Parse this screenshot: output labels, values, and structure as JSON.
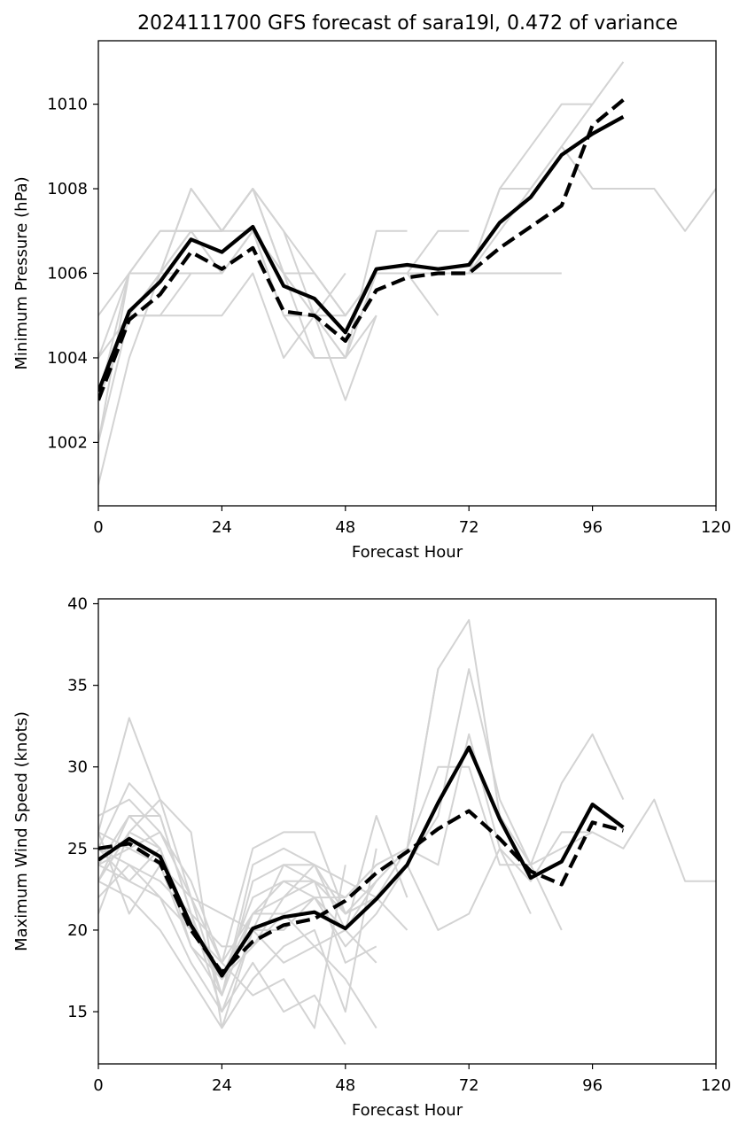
{
  "title": "2024111700 GFS forecast of sara19l, 0.472 of variance",
  "colors": {
    "member": "#d3d3d3",
    "mean": "#000000",
    "reconstruction": "#000000",
    "frame": "#000000"
  },
  "chart_data": [
    {
      "type": "line",
      "panel": "pressure",
      "xlabel": "Forecast Hour",
      "ylabel": "Minimum Pressure (hPa)",
      "xlim": [
        0,
        120
      ],
      "ylim": [
        1000.5,
        1011.5
      ],
      "xticks": [
        0,
        24,
        48,
        72,
        96,
        120
      ],
      "yticks": [
        1002,
        1004,
        1006,
        1008,
        1010
      ],
      "series": [
        {
          "role": "mean",
          "style": "solid",
          "x": [
            0,
            6,
            12,
            18,
            24,
            30,
            36,
            42,
            48,
            54,
            60,
            66,
            72,
            78,
            84,
            90,
            96,
            102
          ],
          "values": [
            1003.2,
            1005.1,
            1005.8,
            1006.8,
            1006.5,
            1007.1,
            1005.7,
            1005.4,
            1004.6,
            1006.1,
            1006.2,
            1006.1,
            1006.2,
            1007.2,
            1007.8,
            1008.8,
            1009.3,
            1009.7
          ]
        },
        {
          "role": "reconstruction",
          "style": "dashed",
          "x": [
            0,
            6,
            12,
            18,
            24,
            30,
            36,
            42,
            48,
            54,
            60,
            66,
            72,
            78,
            84,
            90,
            96,
            102
          ],
          "values": [
            1003.0,
            1004.9,
            1005.5,
            1006.5,
            1006.1,
            1006.6,
            1005.1,
            1005.0,
            1004.4,
            1005.6,
            1005.9,
            1006.0,
            1006.0,
            1006.6,
            1007.1,
            1007.6,
            1009.5,
            1010.1
          ]
        },
        {
          "role": "member",
          "x": [
            0,
            6,
            12,
            18,
            24,
            30,
            36,
            42,
            48,
            54,
            60,
            66,
            72,
            78,
            84,
            90,
            96,
            102
          ],
          "values": [
            1004,
            1006,
            1006,
            1007,
            1007,
            1008,
            1006,
            1006,
            1005,
            1006,
            1006,
            1006,
            1006,
            1008,
            1009,
            1010,
            1010,
            1011
          ]
        },
        {
          "role": "member",
          "x": [
            0,
            6,
            12,
            18,
            24,
            30,
            36,
            42,
            48,
            54,
            60,
            66,
            72,
            78,
            84,
            90,
            96,
            102,
            108,
            114,
            120
          ],
          "values": [
            1003,
            1005,
            1006,
            1007,
            1006,
            1007,
            1006,
            1005,
            1004,
            1006,
            1006,
            1006,
            1006,
            1007,
            1008,
            1009,
            1008,
            1008,
            1008,
            1007,
            1008
          ]
        },
        {
          "role": "member",
          "x": [
            0,
            6,
            12,
            18,
            24,
            30,
            36,
            42,
            48,
            54,
            60
          ],
          "values": [
            1002,
            1005,
            1005,
            1006,
            1006,
            1007,
            1005,
            1004,
            1004,
            1007,
            1007
          ]
        },
        {
          "role": "member",
          "x": [
            0,
            6,
            12,
            18,
            24,
            30,
            36,
            42,
            48,
            54,
            60,
            66
          ],
          "values": [
            1001,
            1004,
            1006,
            1008,
            1007,
            1008,
            1007,
            1005,
            1004,
            1006,
            1006,
            1005
          ]
        },
        {
          "role": "member",
          "x": [
            0,
            6,
            12,
            18,
            24,
            30,
            36,
            42,
            48,
            54,
            60,
            66,
            72
          ],
          "values": [
            1005,
            1006,
            1007,
            1007,
            1007,
            1007,
            1006,
            1006,
            1005,
            1006,
            1006,
            1007,
            1007
          ]
        },
        {
          "role": "member",
          "x": [
            0,
            6,
            12,
            18,
            24,
            30,
            36,
            42,
            48,
            54,
            60,
            66,
            72,
            78,
            84,
            90
          ],
          "values": [
            1003,
            1005,
            1006,
            1006,
            1006,
            1007,
            1005,
            1005,
            1005,
            1006,
            1006,
            1006,
            1006,
            1006,
            1006,
            1006
          ]
        },
        {
          "role": "member",
          "x": [
            0,
            6,
            12,
            18,
            24,
            30,
            36,
            42,
            48,
            54
          ],
          "values": [
            1004,
            1005,
            1005,
            1005,
            1005,
            1006,
            1004,
            1005,
            1003,
            1005
          ]
        },
        {
          "role": "member",
          "x": [
            0,
            6,
            12,
            18,
            24,
            30,
            36,
            42,
            48,
            54
          ],
          "values": [
            1003,
            1006,
            1006,
            1008,
            1007,
            1008,
            1006,
            1004,
            1004,
            1005
          ]
        },
        {
          "role": "member",
          "x": [
            0,
            6,
            12,
            18,
            24,
            30,
            36,
            42,
            48,
            54,
            60,
            66,
            72,
            78,
            84,
            90,
            96
          ],
          "values": [
            1002,
            1006,
            1007,
            1007,
            1007,
            1008,
            1007,
            1006,
            1005,
            1006,
            1006,
            1006,
            1006,
            1008,
            1008,
            1009,
            1010
          ]
        },
        {
          "role": "member",
          "x": [
            0,
            6,
            12,
            18,
            24,
            30,
            36,
            42,
            48
          ],
          "values": [
            1003,
            1005,
            1006,
            1007,
            1006,
            1007,
            1006,
            1005,
            1006
          ]
        }
      ]
    },
    {
      "type": "line",
      "panel": "wind",
      "xlabel": "Forecast Hour",
      "ylabel": "Maximum Wind Speed (knots)",
      "xlim": [
        0,
        120
      ],
      "ylim": [
        11.8,
        40.3
      ],
      "xticks": [
        0,
        24,
        48,
        72,
        96,
        120
      ],
      "yticks": [
        15,
        20,
        25,
        30,
        35,
        40
      ],
      "series": [
        {
          "role": "mean",
          "style": "solid",
          "x": [
            0,
            6,
            12,
            18,
            24,
            30,
            36,
            42,
            48,
            54,
            60,
            66,
            72,
            78,
            84,
            90,
            96,
            102
          ],
          "values": [
            24.3,
            25.6,
            24.5,
            20.3,
            17.2,
            20.1,
            20.8,
            21.1,
            20.1,
            21.9,
            24.0,
            27.8,
            31.2,
            26.8,
            23.2,
            24.2,
            27.7,
            26.3
          ]
        },
        {
          "role": "reconstruction",
          "style": "dashed",
          "x": [
            0,
            6,
            12,
            18,
            24,
            30,
            36,
            42,
            48,
            54,
            60,
            66,
            72,
            78,
            84,
            90,
            96,
            102
          ],
          "values": [
            25.0,
            25.3,
            24.1,
            20.0,
            17.4,
            19.3,
            20.3,
            20.7,
            21.8,
            23.5,
            24.8,
            26.2,
            27.3,
            25.6,
            23.6,
            22.8,
            26.6,
            26.1
          ]
        },
        {
          "role": "member",
          "x": [
            0,
            6,
            12,
            18,
            24,
            30,
            36,
            42,
            48,
            54,
            60,
            66,
            72,
            78,
            84,
            90,
            96,
            102
          ],
          "values": [
            26,
            33,
            28,
            22,
            18,
            25,
            26,
            26,
            21,
            22,
            25,
            36,
            39,
            27,
            24,
            29,
            32,
            28
          ]
        },
        {
          "role": "member",
          "x": [
            0,
            6,
            12,
            18,
            24,
            30,
            36,
            42,
            48,
            54,
            60,
            66,
            72,
            78,
            84,
            90,
            96,
            102,
            108,
            114,
            120
          ],
          "values": [
            23,
            26,
            25,
            20,
            17,
            21,
            22,
            23,
            21,
            22,
            24,
            27,
            36,
            28,
            24,
            25,
            26,
            25,
            28,
            23,
            23
          ]
        },
        {
          "role": "member",
          "x": [
            0,
            6,
            12,
            18,
            24,
            30,
            36,
            42,
            48,
            54,
            60,
            66,
            72,
            78,
            84,
            90
          ],
          "values": [
            25,
            29,
            27,
            21,
            16,
            23,
            24,
            24,
            20,
            23,
            25,
            30,
            30,
            24,
            24,
            20
          ]
        },
        {
          "role": "member",
          "x": [
            0,
            6,
            12,
            18,
            24,
            30,
            36,
            42,
            48,
            54,
            60,
            66,
            72,
            78,
            84,
            90,
            96
          ],
          "values": [
            24,
            27,
            25,
            20,
            17,
            19,
            21,
            22,
            22,
            24,
            25,
            24,
            32,
            25,
            23,
            26,
            26
          ]
        },
        {
          "role": "member",
          "x": [
            0,
            6,
            12,
            18,
            24,
            30,
            36,
            42,
            48,
            54,
            60,
            66,
            72,
            78,
            84
          ],
          "values": [
            22,
            24,
            22,
            18,
            15,
            20,
            20,
            22,
            19,
            21,
            24,
            20,
            21,
            25,
            21
          ]
        },
        {
          "role": "member",
          "x": [
            0,
            6,
            12,
            18,
            24,
            30,
            36,
            42,
            48,
            54,
            60,
            66
          ],
          "values": [
            27,
            28,
            26,
            23,
            18,
            21,
            23,
            23,
            22,
            24,
            25,
            36
          ]
        },
        {
          "role": "member",
          "x": [
            0,
            6,
            12,
            18,
            24,
            30,
            36,
            42,
            48,
            54
          ],
          "values": [
            21,
            26,
            28,
            26,
            14,
            20,
            18,
            19,
            17,
            14
          ]
        },
        {
          "role": "member",
          "x": [
            0,
            6,
            12,
            18,
            24,
            30,
            36,
            42,
            48,
            54,
            60
          ],
          "values": [
            26,
            25,
            24,
            19,
            17,
            22,
            23,
            22,
            20,
            27,
            22
          ]
        },
        {
          "role": "member",
          "x": [
            0,
            6,
            12,
            18,
            24,
            30,
            36,
            42,
            48,
            54,
            60
          ],
          "values": [
            23,
            27,
            27,
            21,
            19,
            19,
            22,
            24,
            23,
            22,
            20
          ]
        },
        {
          "role": "member",
          "x": [
            0,
            6,
            12,
            18,
            24,
            30,
            36,
            42,
            48
          ],
          "values": [
            24,
            23,
            22,
            20,
            18,
            16,
            17,
            14,
            24
          ]
        },
        {
          "role": "member",
          "x": [
            0,
            6,
            12,
            18,
            24,
            30,
            36,
            42,
            48
          ],
          "values": [
            25,
            24,
            23,
            21,
            15,
            18,
            15,
            16,
            13
          ]
        },
        {
          "role": "member",
          "x": [
            0,
            6,
            12,
            18,
            24,
            30,
            36,
            42,
            48,
            54
          ],
          "values": [
            23,
            22,
            20,
            17,
            14,
            17,
            19,
            20,
            15,
            25
          ]
        },
        {
          "role": "member",
          "x": [
            0,
            6,
            12,
            18,
            24,
            30,
            36,
            42,
            48,
            54
          ],
          "values": [
            26,
            21,
            24,
            22,
            21,
            20,
            24,
            23,
            18,
            19
          ]
        },
        {
          "role": "member",
          "x": [
            0,
            6,
            12,
            18,
            24,
            30,
            36,
            42,
            48,
            54,
            60
          ],
          "values": [
            24,
            25,
            26,
            22,
            16,
            24,
            25,
            24,
            21,
            23,
            25
          ]
        },
        {
          "role": "member",
          "x": [
            0,
            6,
            12,
            18,
            24,
            30,
            36,
            42,
            48,
            54
          ],
          "values": [
            25,
            23,
            25,
            19,
            16,
            21,
            21,
            19,
            20,
            18
          ]
        }
      ]
    }
  ]
}
